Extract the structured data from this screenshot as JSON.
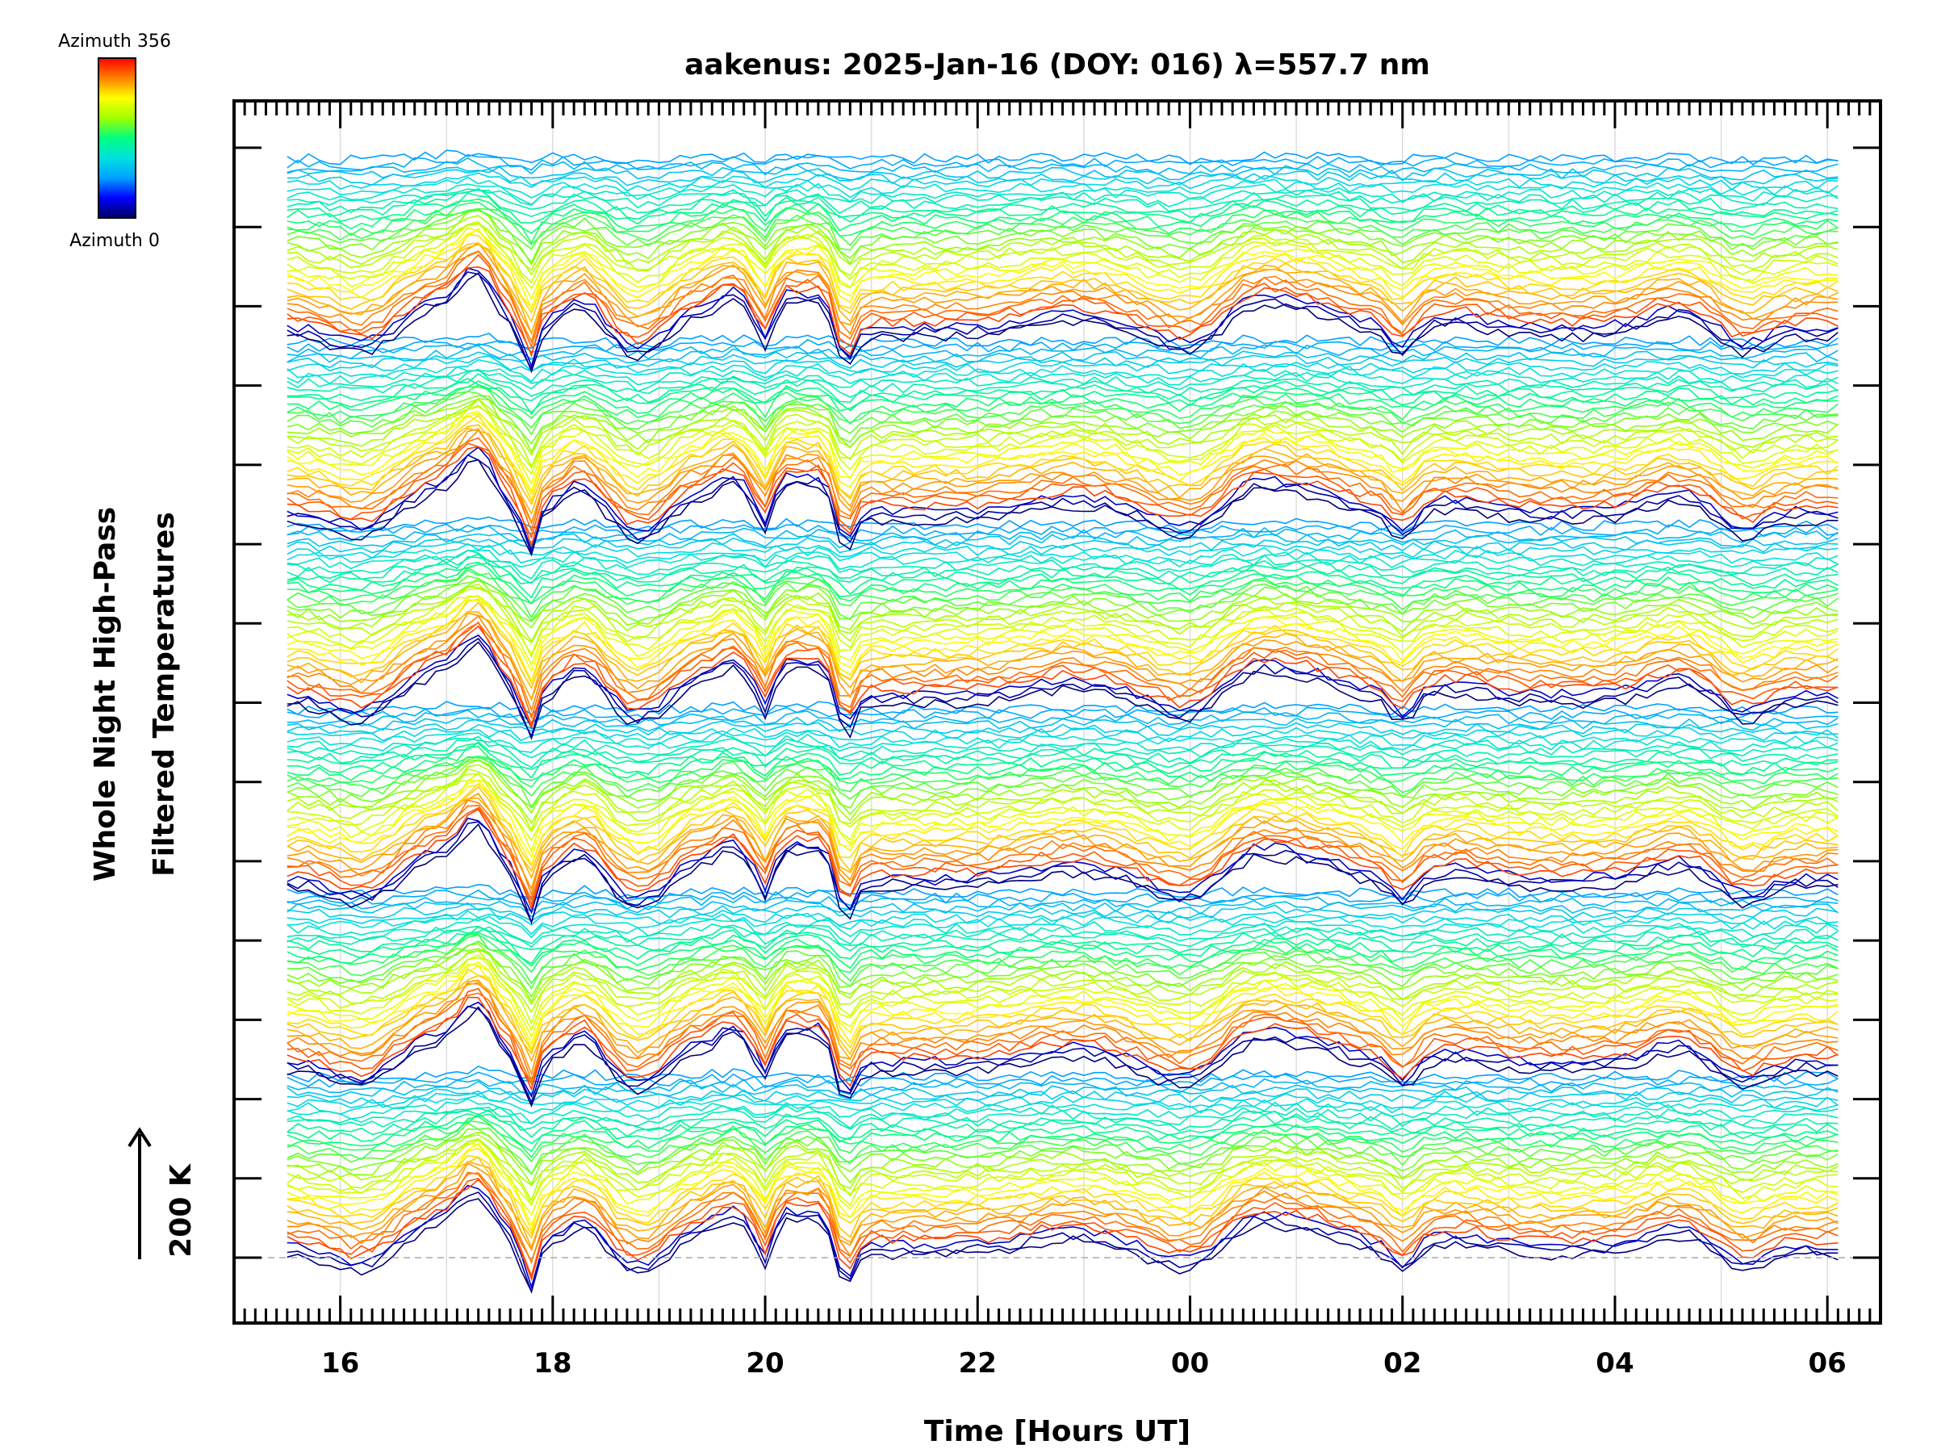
{
  "chart_data": {
    "type": "line",
    "title": "aakenus: 2025-Jan-16 (DOY: 016) λ=557.7 nm",
    "xlabel": "Time [Hours UT]",
    "ylabel": [
      "Whole Night High-Pass",
      "Filtered Temperatures"
    ],
    "scale_label": "200 K",
    "x_ticks": [
      "16",
      "18",
      "20",
      "22",
      "00",
      "02",
      "04",
      "06"
    ],
    "x_range_hours": [
      15.0,
      30.5
    ],
    "x_start_hour": 15.5,
    "x_end_hour": 30.1,
    "sample_step_hours": 0.1,
    "colorbar": {
      "label_max": "Azimuth 356",
      "label_min": "Azimuth 0",
      "colors": [
        "#000060",
        "#0000ff",
        "#00a0ff",
        "#00e0e0",
        "#00ff80",
        "#a0ff00",
        "#ffff00",
        "#ff8000",
        "#ff0000"
      ]
    },
    "grid": true,
    "series_groups": 6,
    "lines_per_group": 36
  }
}
